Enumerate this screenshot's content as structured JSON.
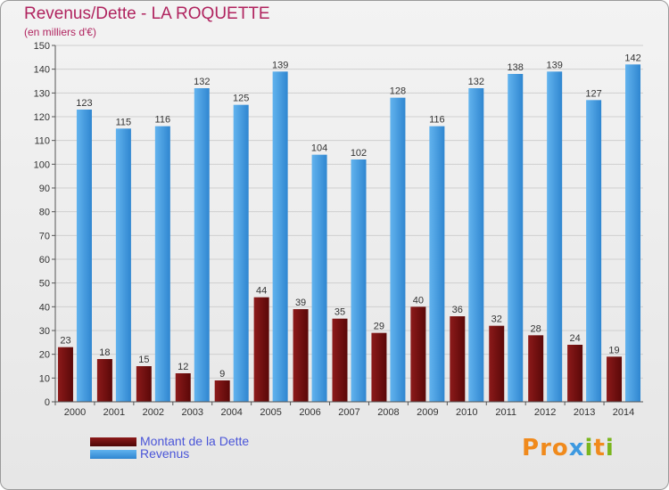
{
  "title": "Revenus/Dette - LA ROQUETTE",
  "subtitle": "(en milliers d'€)",
  "logo": {
    "text": "Proxiti"
  },
  "chart_data": {
    "type": "bar",
    "categories": [
      "2000",
      "2001",
      "2002",
      "2003",
      "2004",
      "2005",
      "2006",
      "2007",
      "2008",
      "2009",
      "2010",
      "2011",
      "2012",
      "2013",
      "2014"
    ],
    "series": [
      {
        "name": "Montant de la Dette",
        "color": "#7a1212",
        "values": [
          23,
          18,
          15,
          12,
          9,
          44,
          39,
          35,
          29,
          40,
          36,
          32,
          28,
          24,
          19
        ]
      },
      {
        "name": "Revenus",
        "color": "#3d99e0",
        "values": [
          123,
          115,
          116,
          132,
          125,
          139,
          104,
          102,
          128,
          116,
          132,
          138,
          139,
          127,
          142
        ]
      }
    ],
    "ylim": [
      0,
      150
    ],
    "yticks": [
      0,
      10,
      20,
      30,
      40,
      50,
      60,
      70,
      80,
      90,
      100,
      110,
      120,
      130,
      140,
      150
    ],
    "grid": true,
    "legend_position": "bottom-left",
    "title": "Revenus/Dette - LA ROQUETTE",
    "xlabel": "",
    "ylabel": "(en milliers d'€)"
  }
}
